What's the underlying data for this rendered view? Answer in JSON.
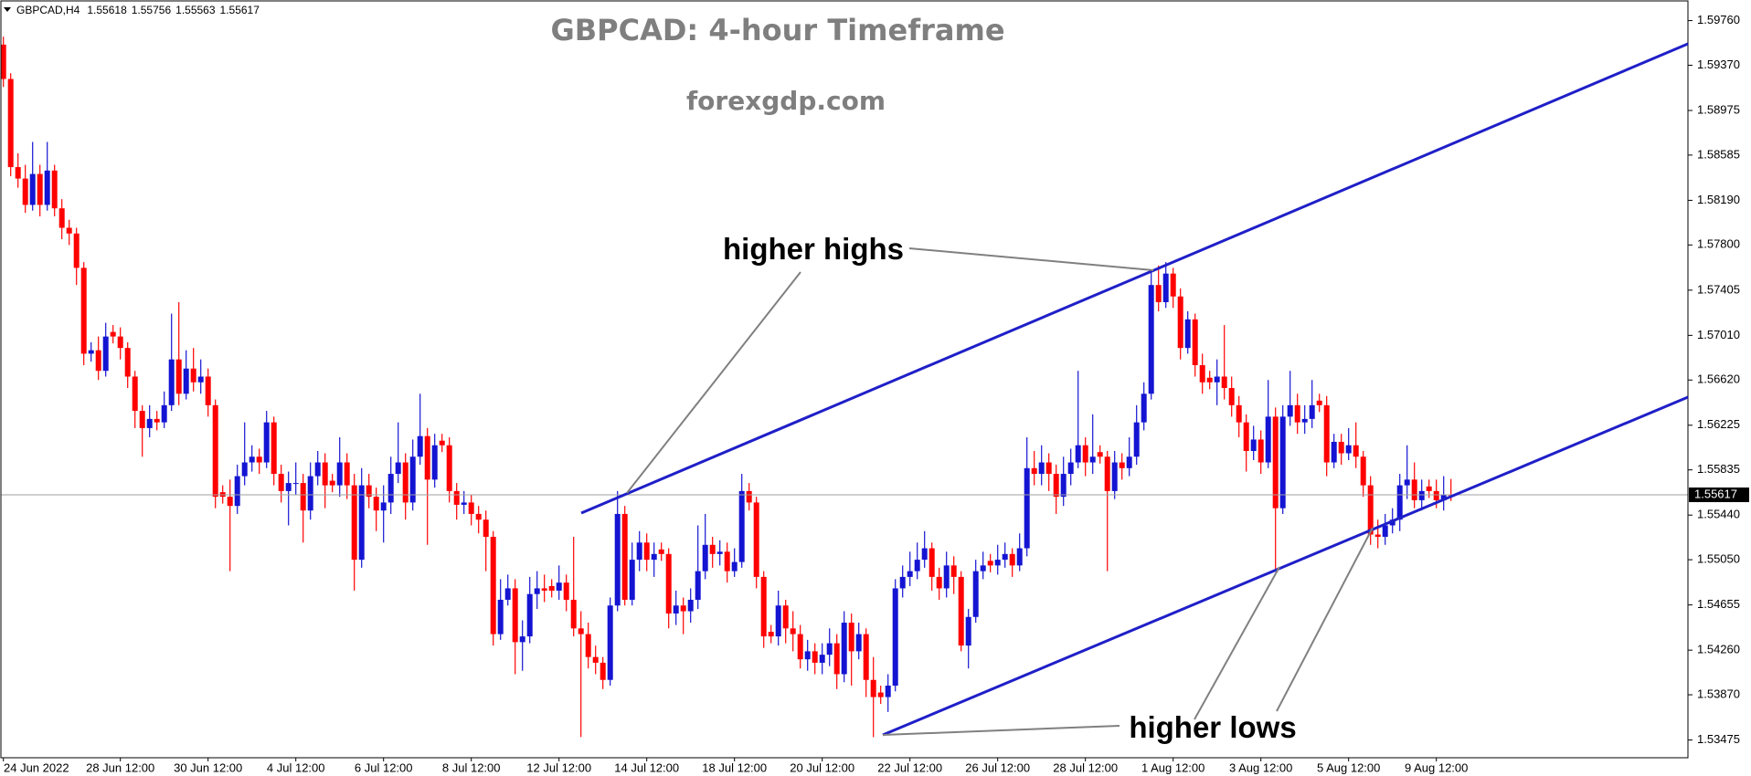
{
  "chart_data": {
    "type": "candlestick",
    "title": "GBPCAD: 4-hour Timeframe",
    "subtitle": "forexgdp.com",
    "symbol": "GBPCAD,H4",
    "annotations": [
      "higher highs",
      "higher lows"
    ],
    "up_color": "#1414d2",
    "down_color": "#ff0000",
    "price_line": true,
    "ylim": [
      1.5332,
      1.5994
    ],
    "yticks": [
      {
        "value": 1.5976,
        "label": "1.59760"
      },
      {
        "value": 1.5937,
        "label": "1.59370"
      },
      1.58975,
      1.58585,
      {
        "value": 1.5819,
        "label": "1.58190"
      },
      {
        "value": 1.578,
        "label": "1.57800"
      },
      1.57405,
      {
        "value": 1.5701,
        "label": "1.57010"
      },
      {
        "value": 1.5662,
        "label": "1.56620"
      },
      1.56225,
      1.55835,
      {
        "value": 1.5544,
        "label": "1.55440"
      },
      {
        "value": 1.5505,
        "label": "1.55050"
      },
      1.54655,
      {
        "value": 1.5426,
        "label": "1.54260"
      },
      {
        "value": 1.5387,
        "label": "1.53870"
      },
      1.53475
    ],
    "categories": [
      "24 Jun 2022",
      null,
      null,
      null,
      null,
      null,
      null,
      null,
      null,
      null,
      null,
      null,
      null,
      null,
      null,
      null,
      "28 Jun 12:00",
      null,
      null,
      null,
      null,
      null,
      null,
      null,
      null,
      null,
      null,
      null,
      "30 Jun 12:00",
      null,
      null,
      null,
      null,
      null,
      null,
      null,
      null,
      null,
      null,
      null,
      "4 Jul 12:00",
      null,
      null,
      null,
      null,
      null,
      null,
      null,
      null,
      null,
      null,
      null,
      "6 Jul 12:00",
      null,
      null,
      null,
      null,
      null,
      null,
      null,
      null,
      null,
      null,
      null,
      "8 Jul 12:00",
      null,
      null,
      null,
      null,
      null,
      null,
      null,
      null,
      null,
      null,
      null,
      "12 Jul 12:00",
      null,
      null,
      null,
      null,
      null,
      null,
      null,
      null,
      null,
      null,
      null,
      "14 Jul 12:00",
      null,
      null,
      null,
      null,
      null,
      null,
      null,
      null,
      null,
      null,
      null,
      "18 Jul 12:00",
      null,
      null,
      null,
      null,
      null,
      null,
      null,
      null,
      null,
      null,
      null,
      "20 Jul 12:00",
      null,
      null,
      null,
      null,
      null,
      null,
      null,
      null,
      null,
      null,
      null,
      "22 Jul 12:00",
      null,
      null,
      null,
      null,
      null,
      null,
      null,
      null,
      null,
      null,
      null,
      "26 Jul 12:00",
      null,
      null,
      null,
      null,
      null,
      null,
      null,
      null,
      null,
      null,
      null,
      "28 Jul 12:00",
      null,
      null,
      null,
      null,
      null,
      null,
      null,
      null,
      null,
      null,
      null,
      "1 Aug 12:00",
      null,
      null,
      null,
      null,
      null,
      null,
      null,
      null,
      null,
      null,
      null,
      "3 Aug 12:00",
      null,
      null,
      null,
      null,
      null,
      null,
      null,
      null,
      null,
      null,
      null,
      "5 Aug 12:00",
      null,
      null,
      null,
      null,
      null,
      null,
      null,
      null,
      null,
      null,
      null,
      "9 Aug 12:00",
      null,
      null
    ],
    "candles": [
      [
        1.5955,
        1.5962,
        1.5918,
        1.5925
      ],
      [
        1.5925,
        1.593,
        1.584,
        1.5848
      ],
      [
        1.5848,
        1.586,
        1.583,
        1.5838
      ],
      [
        1.5838,
        1.585,
        1.5808,
        1.5815
      ],
      [
        1.5815,
        1.587,
        1.581,
        1.5842
      ],
      [
        1.5842,
        1.585,
        1.5805,
        1.5815
      ],
      [
        1.5815,
        1.587,
        1.581,
        1.5845
      ],
      [
        1.5845,
        1.585,
        1.5805,
        1.5812
      ],
      [
        1.5812,
        1.582,
        1.5785,
        1.5795
      ],
      [
        1.5795,
        1.5802,
        1.578,
        1.579
      ],
      [
        1.579,
        1.5795,
        1.5745,
        1.576
      ],
      [
        1.576,
        1.5765,
        1.5675,
        1.5685
      ],
      [
        1.5685,
        1.5695,
        1.5678,
        1.5688
      ],
      [
        1.5688,
        1.57,
        1.5662,
        1.567
      ],
      [
        1.567,
        1.5712,
        1.5665,
        1.57
      ],
      [
        1.5704,
        1.571,
        1.5694,
        1.57
      ],
      [
        1.57,
        1.5708,
        1.568,
        1.569
      ],
      [
        1.569,
        1.5695,
        1.5655,
        1.5665
      ],
      [
        1.5665,
        1.567,
        1.562,
        1.5635
      ],
      [
        1.5635,
        1.564,
        1.5595,
        1.562
      ],
      [
        1.562,
        1.564,
        1.5612,
        1.5628
      ],
      [
        1.5628,
        1.5635,
        1.5618,
        1.5625
      ],
      [
        1.5625,
        1.5652,
        1.562,
        1.564
      ],
      [
        1.564,
        1.572,
        1.5635,
        1.568
      ],
      [
        1.568,
        1.573,
        1.564,
        1.565
      ],
      [
        1.565,
        1.5688,
        1.5645,
        1.5672
      ],
      [
        1.5672,
        1.569,
        1.5652,
        1.566
      ],
      [
        1.566,
        1.568,
        1.565,
        1.5665
      ],
      [
        1.5665,
        1.5672,
        1.563,
        1.564
      ],
      [
        1.564,
        1.5645,
        1.555,
        1.556
      ],
      [
        1.5564,
        1.557,
        1.5554,
        1.556
      ],
      [
        1.556,
        1.5575,
        1.5495,
        1.5552
      ],
      [
        1.5552,
        1.5588,
        1.5545,
        1.5578
      ],
      [
        1.5578,
        1.5625,
        1.557,
        1.559
      ],
      [
        1.559,
        1.5605,
        1.5582,
        1.5595
      ],
      [
        1.5595,
        1.5602,
        1.558,
        1.559
      ],
      [
        1.559,
        1.5635,
        1.5585,
        1.5625
      ],
      [
        1.5625,
        1.563,
        1.557,
        1.558
      ],
      [
        1.558,
        1.5588,
        1.5555,
        1.5565
      ],
      [
        1.5565,
        1.5582,
        1.5535,
        1.5572
      ],
      [
        1.5572,
        1.559,
        1.5562,
        1.5572
      ],
      [
        1.5572,
        1.558,
        1.552,
        1.5548
      ],
      [
        1.5548,
        1.559,
        1.554,
        1.5578
      ],
      [
        1.5578,
        1.56,
        1.557,
        1.559
      ],
      [
        1.559,
        1.5598,
        1.555,
        1.557
      ],
      [
        1.5574,
        1.558,
        1.5564,
        1.557
      ],
      [
        1.557,
        1.5612,
        1.556,
        1.559
      ],
      [
        1.559,
        1.5598,
        1.5558,
        1.557
      ],
      [
        1.557,
        1.558,
        1.5478,
        1.5505
      ],
      [
        1.5505,
        1.5585,
        1.5498,
        1.557
      ],
      [
        1.557,
        1.558,
        1.555,
        1.556
      ],
      [
        1.556,
        1.5568,
        1.553,
        1.5548
      ],
      [
        1.5548,
        1.557,
        1.552,
        1.5555
      ],
      [
        1.5555,
        1.5595,
        1.5545,
        1.558
      ],
      [
        1.558,
        1.5625,
        1.5572,
        1.559
      ],
      [
        1.559,
        1.5598,
        1.554,
        1.5555
      ],
      [
        1.5555,
        1.561,
        1.5548,
        1.5595
      ],
      [
        1.5595,
        1.565,
        1.5588,
        1.5613
      ],
      [
        1.5613,
        1.562,
        1.5518,
        1.5575
      ],
      [
        1.5575,
        1.5615,
        1.5568,
        1.5605
      ],
      [
        1.5609,
        1.5615,
        1.5599,
        1.5605
      ],
      [
        1.5605,
        1.5612,
        1.5555,
        1.5565
      ],
      [
        1.5565,
        1.5572,
        1.554,
        1.5553
      ],
      [
        1.5553,
        1.5565,
        1.5545,
        1.5555
      ],
      [
        1.5555,
        1.5562,
        1.5535,
        1.5545
      ],
      [
        1.5545,
        1.5552,
        1.5528,
        1.554
      ],
      [
        1.554,
        1.5548,
        1.5495,
        1.5525
      ],
      [
        1.5525,
        1.553,
        1.543,
        1.544
      ],
      [
        1.544,
        1.5488,
        1.5435,
        1.547
      ],
      [
        1.547,
        1.5492,
        1.5465,
        1.548
      ],
      [
        1.548,
        1.5488,
        1.5405,
        1.5433
      ],
      [
        1.5433,
        1.5452,
        1.5408,
        1.5438
      ],
      [
        1.5438,
        1.549,
        1.5432,
        1.5475
      ],
      [
        1.5475,
        1.5495,
        1.5462,
        1.548
      ],
      [
        1.548,
        1.5492,
        1.5468,
        1.5478
      ],
      [
        1.5482,
        1.5488,
        1.5472,
        1.5478
      ],
      [
        1.5478,
        1.55,
        1.547,
        1.5485
      ],
      [
        1.5485,
        1.5492,
        1.546,
        1.547
      ],
      [
        1.547,
        1.5525,
        1.5438,
        1.5445
      ],
      [
        1.5445,
        1.546,
        1.535,
        1.544
      ],
      [
        1.544,
        1.545,
        1.541,
        1.542
      ],
      [
        1.542,
        1.543,
        1.5405,
        1.5415
      ],
      [
        1.5415,
        1.542,
        1.5392,
        1.54
      ],
      [
        1.54,
        1.5472,
        1.5395,
        1.5465
      ],
      [
        1.5465,
        1.5565,
        1.546,
        1.5545
      ],
      [
        1.5545,
        1.5552,
        1.5465,
        1.547
      ],
      [
        1.547,
        1.552,
        1.5465,
        1.5505
      ],
      [
        1.5505,
        1.553,
        1.5495,
        1.552
      ],
      [
        1.552,
        1.5528,
        1.5495,
        1.5505
      ],
      [
        1.5505,
        1.552,
        1.549,
        1.551
      ],
      [
        1.5514,
        1.552,
        1.5504,
        1.551
      ],
      [
        1.551,
        1.5515,
        1.5445,
        1.5458
      ],
      [
        1.5458,
        1.5478,
        1.5448,
        1.5465
      ],
      [
        1.5465,
        1.5472,
        1.544,
        1.546
      ],
      [
        1.546,
        1.548,
        1.545,
        1.547
      ],
      [
        1.547,
        1.5535,
        1.5462,
        1.5495
      ],
      [
        1.5495,
        1.5545,
        1.5488,
        1.5518
      ],
      [
        1.5518,
        1.5525,
        1.5498,
        1.551
      ],
      [
        1.551,
        1.5522,
        1.55,
        1.5512
      ],
      [
        1.5512,
        1.552,
        1.5485,
        1.5495
      ],
      [
        1.5495,
        1.5515,
        1.549,
        1.5503
      ],
      [
        1.5503,
        1.558,
        1.5498,
        1.5565
      ],
      [
        1.5565,
        1.5572,
        1.5548,
        1.5555
      ],
      [
        1.5555,
        1.556,
        1.548,
        1.549
      ],
      [
        1.549,
        1.5495,
        1.5428,
        1.5438
      ],
      [
        1.5442,
        1.5448,
        1.5432,
        1.5438
      ],
      [
        1.5438,
        1.5478,
        1.543,
        1.5465
      ],
      [
        1.5465,
        1.547,
        1.5432,
        1.5445
      ],
      [
        1.5445,
        1.546,
        1.5425,
        1.544
      ],
      [
        1.544,
        1.5448,
        1.541,
        1.5418
      ],
      [
        1.5418,
        1.5435,
        1.5408,
        1.5425
      ],
      [
        1.5425,
        1.5432,
        1.5405,
        1.5415
      ],
      [
        1.5415,
        1.5432,
        1.5405,
        1.5422
      ],
      [
        1.5422,
        1.5445,
        1.5412,
        1.5432
      ],
      [
        1.5432,
        1.544,
        1.5392,
        1.5405
      ],
      [
        1.5405,
        1.546,
        1.5398,
        1.545
      ],
      [
        1.545,
        1.5458,
        1.5395,
        1.5425
      ],
      [
        1.5425,
        1.545,
        1.5418,
        1.544
      ],
      [
        1.544,
        1.5445,
        1.5385,
        1.54
      ],
      [
        1.54,
        1.542,
        1.535,
        1.5385
      ],
      [
        1.5389,
        1.5395,
        1.5379,
        1.5385
      ],
      [
        1.5385,
        1.5405,
        1.5372,
        1.5395
      ],
      [
        1.5395,
        1.5488,
        1.539,
        1.548
      ],
      [
        1.548,
        1.55,
        1.5472,
        1.549
      ],
      [
        1.549,
        1.5512,
        1.5482,
        1.5495
      ],
      [
        1.5495,
        1.552,
        1.5488,
        1.5505
      ],
      [
        1.5505,
        1.553,
        1.5498,
        1.5515
      ],
      [
        1.5515,
        1.552,
        1.5478,
        1.549
      ],
      [
        1.549,
        1.5498,
        1.547,
        1.548
      ],
      [
        1.548,
        1.5512,
        1.5472,
        1.55
      ],
      [
        1.55,
        1.5508,
        1.5475,
        1.549
      ],
      [
        1.549,
        1.5495,
        1.5425,
        1.543
      ],
      [
        1.543,
        1.5462,
        1.541,
        1.5455
      ],
      [
        1.5455,
        1.5505,
        1.545,
        1.5495
      ],
      [
        1.5495,
        1.5512,
        1.5488,
        1.55
      ],
      [
        1.5504,
        1.551,
        1.5494,
        1.55
      ],
      [
        1.55,
        1.5518,
        1.5492,
        1.5505
      ],
      [
        1.5505,
        1.552,
        1.5498,
        1.551
      ],
      [
        1.551,
        1.5515,
        1.549,
        1.55
      ],
      [
        1.55,
        1.5528,
        1.5495,
        1.5515
      ],
      [
        1.5515,
        1.5612,
        1.5508,
        1.5585
      ],
      [
        1.5585,
        1.56,
        1.557,
        1.558
      ],
      [
        1.558,
        1.5605,
        1.557,
        1.559
      ],
      [
        1.559,
        1.5598,
        1.5565,
        1.558
      ],
      [
        1.558,
        1.5588,
        1.5545,
        1.556
      ],
      [
        1.556,
        1.5595,
        1.5552,
        1.558
      ],
      [
        1.558,
        1.5602,
        1.557,
        1.559
      ],
      [
        1.559,
        1.567,
        1.5585,
        1.5605
      ],
      [
        1.5605,
        1.5612,
        1.5578,
        1.559
      ],
      [
        1.559,
        1.5632,
        1.558,
        1.5595
      ],
      [
        1.5599,
        1.5605,
        1.5589,
        1.5595
      ],
      [
        1.5595,
        1.56,
        1.5495,
        1.5565
      ],
      [
        1.5565,
        1.56,
        1.5558,
        1.559
      ],
      [
        1.559,
        1.5598,
        1.5575,
        1.5585
      ],
      [
        1.5585,
        1.5612,
        1.5578,
        1.5595
      ],
      [
        1.5595,
        1.564,
        1.5588,
        1.5625
      ],
      [
        1.5625,
        1.566,
        1.5618,
        1.565
      ],
      [
        1.565,
        1.5758,
        1.5645,
        1.5745
      ],
      [
        1.5745,
        1.5762,
        1.5722,
        1.573
      ],
      [
        1.573,
        1.5765,
        1.5725,
        1.5755
      ],
      [
        1.5755,
        1.576,
        1.5725,
        1.5735
      ],
      [
        1.5735,
        1.5742,
        1.568,
        1.569
      ],
      [
        1.569,
        1.5722,
        1.5685,
        1.5715
      ],
      [
        1.5715,
        1.572,
        1.5665,
        1.5675
      ],
      [
        1.5675,
        1.5685,
        1.565,
        1.566
      ],
      [
        1.5664,
        1.567,
        1.5654,
        1.566
      ],
      [
        1.566,
        1.568,
        1.564,
        1.5665
      ],
      [
        1.5665,
        1.571,
        1.5645,
        1.5655
      ],
      [
        1.5655,
        1.5665,
        1.563,
        1.564
      ],
      [
        1.564,
        1.5648,
        1.5612,
        1.5625
      ],
      [
        1.5625,
        1.5632,
        1.5582,
        1.56
      ],
      [
        1.56,
        1.5622,
        1.5592,
        1.561
      ],
      [
        1.561,
        1.5618,
        1.558,
        1.559
      ],
      [
        1.559,
        1.5662,
        1.5585,
        1.563
      ],
      [
        1.563,
        1.5638,
        1.5497,
        1.555
      ],
      [
        1.555,
        1.564,
        1.5545,
        1.563
      ],
      [
        1.563,
        1.567,
        1.5622,
        1.564
      ],
      [
        1.564,
        1.565,
        1.5615,
        1.5625
      ],
      [
        1.5625,
        1.564,
        1.5615,
        1.5628
      ],
      [
        1.5628,
        1.5662,
        1.562,
        1.564
      ],
      [
        1.5644,
        1.565,
        1.5634,
        1.564
      ],
      [
        1.564,
        1.5648,
        1.5578,
        1.559
      ],
      [
        1.559,
        1.5615,
        1.5585,
        1.5608
      ],
      [
        1.5608,
        1.5615,
        1.5588,
        1.5598
      ],
      [
        1.5598,
        1.562,
        1.5592,
        1.5605
      ],
      [
        1.5605,
        1.5625,
        1.5585,
        1.5595
      ],
      [
        1.5595,
        1.56,
        1.556,
        1.557
      ],
      [
        1.557,
        1.5578,
        1.5518,
        1.5527
      ],
      [
        1.5527,
        1.554,
        1.5515,
        1.5525
      ],
      [
        1.5525,
        1.5545,
        1.5518,
        1.5535
      ],
      [
        1.5535,
        1.555,
        1.5528,
        1.554
      ],
      [
        1.554,
        1.558,
        1.553,
        1.557
      ],
      [
        1.557,
        1.5605,
        1.5558,
        1.5575
      ],
      [
        1.5575,
        1.559,
        1.555,
        1.5557
      ],
      [
        1.5557,
        1.5575,
        1.5548,
        1.5565
      ],
      [
        1.5569,
        1.5575,
        1.5559,
        1.5565
      ],
      [
        1.5565,
        1.5575,
        1.555,
        1.5557
      ],
      [
        1.5557,
        1.5578,
        1.5548,
        1.5562
      ],
      [
        1.55618,
        1.55756,
        1.55563,
        1.55617
      ]
    ]
  }
}
